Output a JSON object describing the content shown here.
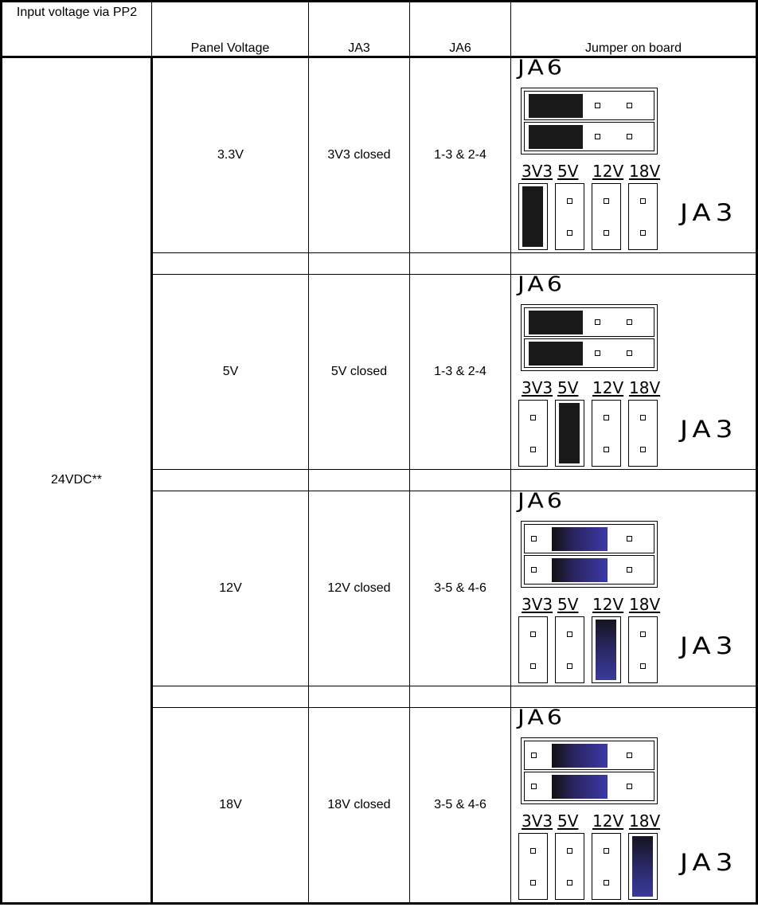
{
  "headers": [
    "Input voltage via PP2",
    "Panel Voltage",
    "JA3",
    "JA6",
    "Jumper on board"
  ],
  "input_voltage": "24VDC**",
  "diagram_labels": {
    "ja6": "JA6",
    "ja3": "JA3",
    "selectors": [
      "3V3",
      "5V",
      "12V",
      "18V"
    ]
  },
  "rows": [
    {
      "panel_voltage": "3.3V",
      "ja3": "3V3 closed",
      "ja6": "1-3 & 2-4",
      "selected": 0,
      "ja6_mode": "left",
      "color": "black"
    },
    {
      "panel_voltage": "5V",
      "ja3": "5V closed",
      "ja6": "1-3 & 2-4",
      "selected": 1,
      "ja6_mode": "left",
      "color": "black"
    },
    {
      "panel_voltage": "12V",
      "ja3": "12V closed",
      "ja6": "3-5 & 4-6",
      "selected": 2,
      "ja6_mode": "middle",
      "color": "blue"
    },
    {
      "panel_voltage": "18V",
      "ja3": "18V closed",
      "ja6": "3-5 & 4-6",
      "selected": 3,
      "ja6_mode": "middle",
      "color": "blue"
    }
  ],
  "colors": {
    "jumper_black": "#1a1a1a",
    "jumper_blue": "#3b3aa8",
    "border": "#000000"
  }
}
